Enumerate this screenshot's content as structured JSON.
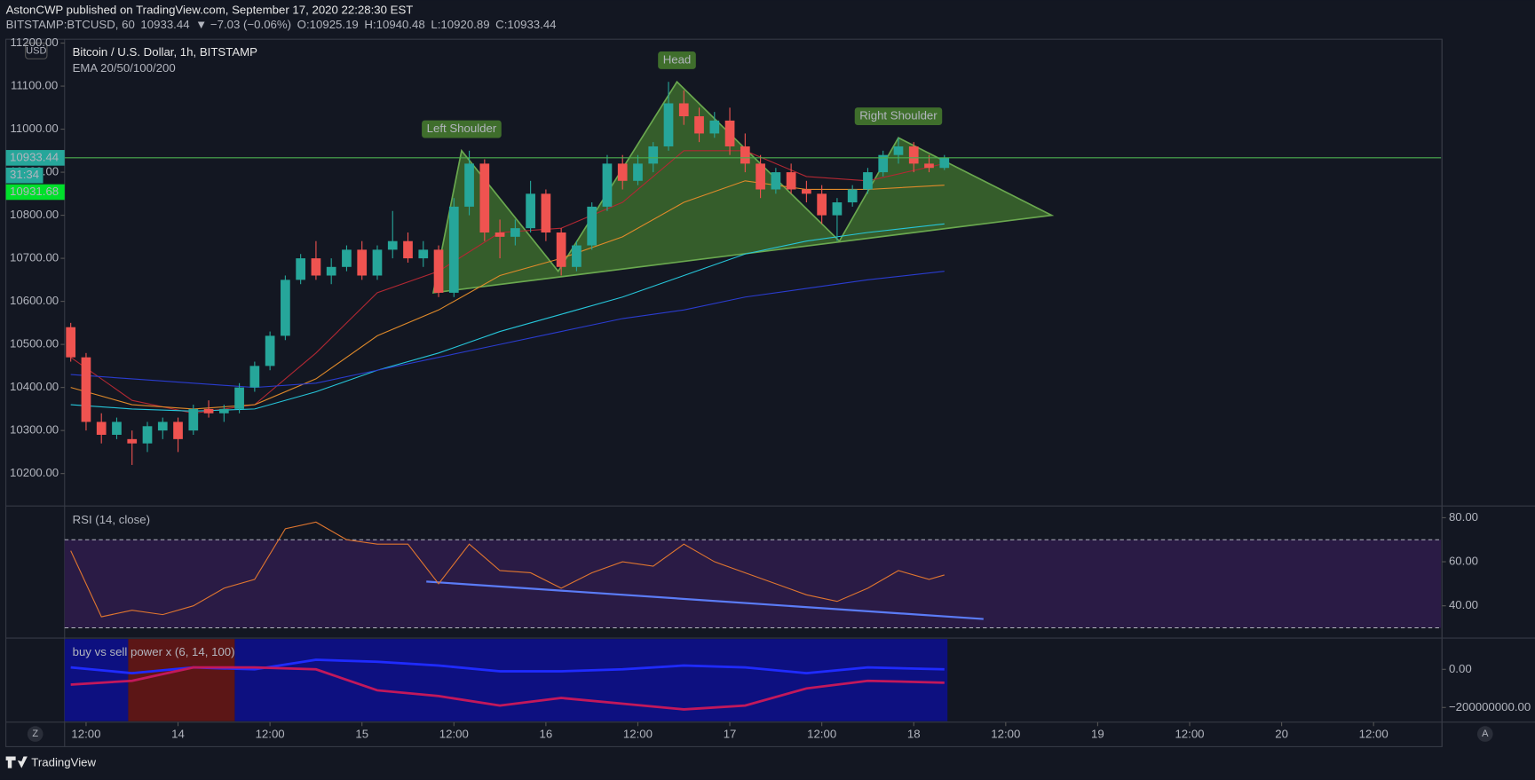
{
  "header": {
    "publisher": "AstonCWP published on TradingView.com, September 17, 2020 22:28:30 EST",
    "symbol": "BITSTAMP:BTCUSD, 60",
    "price": "10933.44",
    "change": "▼ −7.03 (−0.06%)",
    "ohlc": [
      {
        "key": "O:",
        "value": "10925.19"
      },
      {
        "key": "H:",
        "value": "10940.48"
      },
      {
        "key": "L:",
        "value": "10920.89"
      },
      {
        "key": "C:",
        "value": "10933.44"
      }
    ]
  },
  "footer": {
    "brand": "TradingView",
    "left_button": "Z",
    "right_button": "A"
  },
  "chart_data": [
    {
      "type": "candlestick",
      "title": "Bitcoin / U.S. Dollar, 1h, BITSTAMP",
      "subtitle": "EMA 20/50/100/200",
      "currency": "USD",
      "up_color": "#26a69a",
      "down_color": "#ef5350",
      "x": [
        -2,
        0,
        2,
        4,
        6,
        8,
        10,
        12,
        14,
        16,
        18,
        20,
        22,
        24,
        26,
        28,
        30,
        32,
        34,
        36,
        38,
        40,
        42,
        44,
        46,
        48,
        50,
        52,
        54,
        56,
        58,
        60,
        62,
        64,
        66,
        68,
        70,
        72,
        74,
        76,
        78,
        80,
        82,
        84,
        86,
        88,
        90,
        92,
        94,
        96,
        98,
        100,
        102,
        104,
        106,
        108,
        110,
        112
      ],
      "open": [
        10540,
        10470,
        10320,
        10290,
        10280,
        10270,
        10300,
        10320,
        10300,
        10350,
        10340,
        10350,
        10400,
        10450,
        10520,
        10650,
        10700,
        10660,
        10680,
        10720,
        10660,
        10720,
        10740,
        10700,
        10720,
        10620,
        10820,
        10920,
        10760,
        10750,
        10770,
        10850,
        10760,
        10680,
        10730,
        10820,
        10920,
        10880,
        10920,
        10960,
        11060,
        11030,
        10990,
        11020,
        10960,
        10920,
        10860,
        10900,
        10860,
        10850,
        10800,
        10830,
        10860,
        10900,
        10940,
        10960,
        10920,
        10910
      ],
      "high": [
        10550,
        10480,
        10340,
        10330,
        10300,
        10320,
        10330,
        10330,
        10360,
        10370,
        10360,
        10410,
        10460,
        10530,
        10660,
        10710,
        10740,
        10700,
        10730,
        10740,
        10730,
        10810,
        10760,
        10740,
        10730,
        10840,
        10950,
        10930,
        10790,
        10790,
        10880,
        10860,
        10770,
        10740,
        10830,
        10940,
        10940,
        10940,
        10970,
        11110,
        11090,
        11050,
        11040,
        11050,
        10990,
        10940,
        10910,
        10920,
        10880,
        10870,
        10840,
        10870,
        10910,
        10950,
        10980,
        10970,
        10940,
        10940
      ],
      "low": [
        10460,
        10300,
        10270,
        10280,
        10220,
        10250,
        10280,
        10250,
        10290,
        10330,
        10320,
        10340,
        10390,
        10440,
        10510,
        10640,
        10650,
        10640,
        10670,
        10650,
        10650,
        10700,
        10690,
        10680,
        10610,
        10610,
        10800,
        10740,
        10700,
        10730,
        10760,
        10740,
        10660,
        10670,
        10720,
        10810,
        10860,
        10870,
        10900,
        10950,
        11010,
        10970,
        10980,
        10940,
        10900,
        10840,
        10850,
        10850,
        10830,
        10780,
        10740,
        10820,
        10850,
        10890,
        10920,
        10900,
        10900,
        10905
      ],
      "close": [
        10470,
        10320,
        10290,
        10320,
        10270,
        10310,
        10320,
        10280,
        10350,
        10340,
        10350,
        10400,
        10450,
        10520,
        10650,
        10700,
        10660,
        10680,
        10720,
        10660,
        10720,
        10740,
        10700,
        10720,
        10620,
        10820,
        10920,
        10760,
        10750,
        10770,
        10850,
        10760,
        10680,
        10730,
        10820,
        10920,
        10880,
        10920,
        10960,
        11060,
        11030,
        10990,
        11020,
        10960,
        10920,
        10860,
        10900,
        10860,
        10850,
        10800,
        10830,
        10860,
        10900,
        10940,
        10960,
        10920,
        10910,
        10933.44
      ],
      "lines": [
        {
          "color": "#b22833",
          "x": [
            -2,
            6,
            14,
            22,
            30,
            38,
            46,
            54,
            62,
            70,
            78,
            86,
            94,
            102,
            112
          ],
          "values": [
            10470,
            10370,
            10340,
            10360,
            10480,
            10620,
            10670,
            10760,
            10770,
            10830,
            10950,
            10950,
            10890,
            10880,
            10920
          ]
        },
        {
          "color": "#e08a2a",
          "x": [
            -2,
            6,
            14,
            22,
            30,
            38,
            46,
            54,
            62,
            70,
            78,
            86,
            94,
            102,
            112
          ],
          "values": [
            10400,
            10360,
            10350,
            10360,
            10420,
            10520,
            10580,
            10660,
            10700,
            10750,
            10830,
            10880,
            10860,
            10860,
            10870
          ]
        },
        {
          "color": "#26c6da",
          "x": [
            -2,
            6,
            14,
            22,
            30,
            38,
            46,
            54,
            62,
            70,
            78,
            86,
            94,
            102,
            112
          ],
          "values": [
            10360,
            10350,
            10345,
            10350,
            10390,
            10440,
            10480,
            10530,
            10570,
            10610,
            10660,
            10710,
            10740,
            10760,
            10780
          ]
        },
        {
          "color": "#2a3ccf",
          "x": [
            -2,
            6,
            14,
            22,
            30,
            38,
            46,
            54,
            62,
            70,
            78,
            86,
            94,
            102,
            112
          ],
          "values": [
            10430,
            10420,
            10410,
            10400,
            10410,
            10440,
            10470,
            10500,
            10530,
            10560,
            10580,
            10610,
            10630,
            10650,
            10670
          ]
        }
      ],
      "pattern": {
        "color": "#4c8c32",
        "x": [
          45.3,
          49,
          61.6,
          77.1,
          98.3,
          106,
          126
        ],
        "values": [
          10620,
          10950,
          10670,
          11110,
          10740,
          10980,
          10800
        ]
      },
      "peak_labels": [
        "Left Shoulder",
        "Head",
        "Right Shoulder"
      ],
      "last_price": 10933.44,
      "last_price_color": "#4caf50",
      "countdown": "31:34",
      "bid_price": 10931.68,
      "xlim": [
        -2.8,
        176.8
      ],
      "xticks": [
        {
          "value": 0,
          "label": "12:00"
        },
        {
          "value": 12,
          "label": "14"
        },
        {
          "value": 24,
          "label": "12:00"
        },
        {
          "value": 36,
          "label": "15"
        },
        {
          "value": 48,
          "label": "12:00"
        },
        {
          "value": 60,
          "label": "16"
        },
        {
          "value": 72,
          "label": "12:00"
        },
        {
          "value": 84,
          "label": "17"
        },
        {
          "value": 96,
          "label": "12:00"
        },
        {
          "value": 108,
          "label": "18"
        },
        {
          "value": 120,
          "label": "12:00"
        },
        {
          "value": 132,
          "label": "19"
        },
        {
          "value": 144,
          "label": "12:00"
        },
        {
          "value": 156,
          "label": "20"
        },
        {
          "value": 168,
          "label": "12:00"
        }
      ],
      "ylim": [
        10127,
        11209
      ],
      "yticks": [
        {
          "value": 10200,
          "label": "10200.00"
        },
        {
          "value": 10300,
          "label": "10300.00"
        },
        {
          "value": 10400,
          "label": "10400.00"
        },
        {
          "value": 10500,
          "label": "10500.00"
        },
        {
          "value": 10600,
          "label": "10600.00"
        },
        {
          "value": 10700,
          "label": "10700.00"
        },
        {
          "value": 10800,
          "label": "10800.00"
        },
        {
          "value": 10900,
          "label": "10900.00"
        },
        {
          "value": 11000,
          "label": "11000.00"
        },
        {
          "value": 11100,
          "label": "11100.00"
        },
        {
          "value": 11200,
          "label": "11200.00"
        }
      ]
    },
    {
      "type": "line",
      "title": "RSI (14, close)",
      "color": "#e0762f",
      "band": [
        30,
        70
      ],
      "band_color": "#2a1b45",
      "x": [
        -2,
        2,
        6,
        10,
        14,
        18,
        22,
        26,
        30,
        34,
        38,
        42,
        46,
        50,
        54,
        58,
        62,
        66,
        70,
        74,
        78,
        82,
        86,
        90,
        94,
        98,
        102,
        106,
        110,
        112
      ],
      "values": [
        65,
        35,
        38,
        36,
        40,
        48,
        52,
        75,
        78,
        70,
        68,
        68,
        50,
        68,
        56,
        55,
        48,
        55,
        60,
        58,
        68,
        60,
        55,
        50,
        45,
        42,
        48,
        56,
        52,
        54
      ],
      "trendline": {
        "color": "#5b7cf7",
        "x": [
          44.4,
          117.1
        ],
        "values": [
          51,
          34
        ]
      },
      "ylim": [
        25.8,
        84.9
      ],
      "yticks": [
        {
          "value": 40,
          "label": "40.00"
        },
        {
          "value": 60,
          "label": "60.00"
        },
        {
          "value": 80,
          "label": "80.00"
        }
      ]
    },
    {
      "type": "line",
      "title": "buy vs sell power x (6, 14, 100)",
      "zones": [
        {
          "start": -2.8,
          "end": 5.5,
          "color": "#0d1080"
        },
        {
          "start": 5.5,
          "end": 19.4,
          "color": "#5c1616"
        },
        {
          "start": 19.4,
          "end": 112.4,
          "color": "#0d1080"
        }
      ],
      "series": [
        {
          "color": "#1f2bff",
          "x": [
            -2,
            6,
            14,
            22,
            30,
            38,
            46,
            54,
            62,
            70,
            78,
            86,
            94,
            102,
            112
          ],
          "values": [
            10000000,
            -20000000,
            10000000,
            0,
            50000000,
            40000000,
            20000000,
            -10000000,
            -10000000,
            0,
            20000000,
            10000000,
            -20000000,
            10000000,
            0
          ]
        },
        {
          "color": "#c2185b",
          "x": [
            -2,
            6,
            14,
            22,
            30,
            38,
            46,
            54,
            62,
            70,
            78,
            86,
            94,
            102,
            112
          ],
          "values": [
            -80000000,
            -60000000,
            10000000,
            10000000,
            0,
            -110000000,
            -140000000,
            -190000000,
            -150000000,
            -180000000,
            -210000000,
            -190000000,
            -100000000,
            -60000000,
            -70000000
          ]
        }
      ],
      "ylim": [
        -272000000,
        159000000
      ],
      "yticks": [
        {
          "value": -200000000,
          "label": "−200000000.00"
        },
        {
          "value": 0,
          "label": "0.00"
        }
      ]
    }
  ]
}
